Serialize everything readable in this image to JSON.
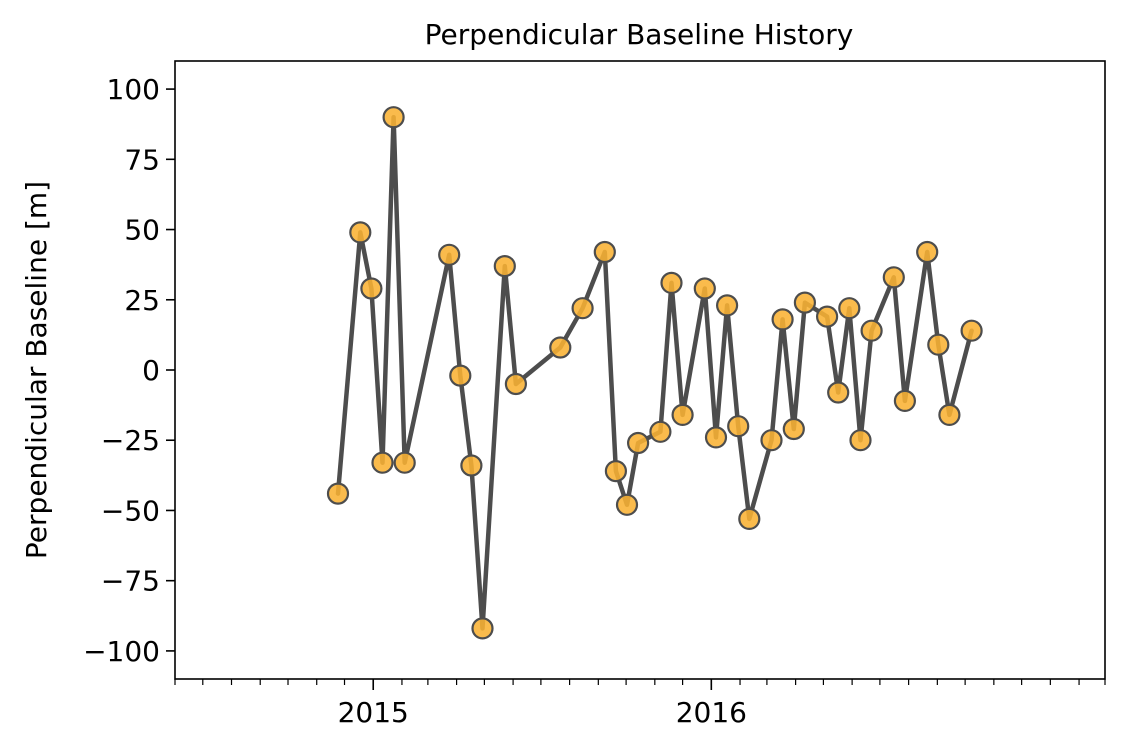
{
  "chart_data": {
    "type": "scatter",
    "title": "Perpendicular Baseline History",
    "xlabel": "",
    "ylabel": "Perpendicular Baseline [m]",
    "ylim": [
      -110,
      110
    ],
    "xlim": [
      "2014-06-01",
      "2017-03-01"
    ],
    "y_ticks": [
      -100,
      -75,
      -50,
      -25,
      0,
      25,
      50,
      75,
      100
    ],
    "y_tick_labels": [
      "−100",
      "−75",
      "−50",
      "−25",
      "0",
      "25",
      "50",
      "75",
      "100"
    ],
    "x_major_ticks": [
      {
        "date": "2015-01-01",
        "label": "2015"
      },
      {
        "date": "2016-01-01",
        "label": "2016"
      }
    ],
    "grid": false,
    "connect_points": true,
    "line_color": "#4d4d4d",
    "marker_fill": "#f9b233",
    "marker_edge": "#4d4d4d",
    "series": [
      {
        "points": [
          {
            "x": "2014-11-24",
            "y": -44
          },
          {
            "x": "2014-12-18",
            "y": 49
          },
          {
            "x": "2014-12-30",
            "y": 29
          },
          {
            "x": "2015-01-11",
            "y": -33
          },
          {
            "x": "2015-01-23",
            "y": 90
          },
          {
            "x": "2015-02-04",
            "y": -33
          },
          {
            "x": "2015-03-24",
            "y": 41
          },
          {
            "x": "2015-04-05",
            "y": -2
          },
          {
            "x": "2015-04-17",
            "y": -34
          },
          {
            "x": "2015-04-29",
            "y": -92
          },
          {
            "x": "2015-05-23",
            "y": 37
          },
          {
            "x": "2015-06-04",
            "y": -5
          },
          {
            "x": "2015-07-22",
            "y": 8
          },
          {
            "x": "2015-08-15",
            "y": 22
          },
          {
            "x": "2015-09-08",
            "y": 42
          },
          {
            "x": "2015-09-20",
            "y": -36
          },
          {
            "x": "2015-10-02",
            "y": -48
          },
          {
            "x": "2015-10-14",
            "y": -26
          },
          {
            "x": "2015-11-07",
            "y": -22
          },
          {
            "x": "2015-11-19",
            "y": 31
          },
          {
            "x": "2015-12-01",
            "y": -16
          },
          {
            "x": "2015-12-25",
            "y": 29
          },
          {
            "x": "2016-01-06",
            "y": -24
          },
          {
            "x": "2016-01-18",
            "y": 23
          },
          {
            "x": "2016-01-30",
            "y": -20
          },
          {
            "x": "2016-02-11",
            "y": -53
          },
          {
            "x": "2016-03-06",
            "y": -25
          },
          {
            "x": "2016-03-18",
            "y": 18
          },
          {
            "x": "2016-03-30",
            "y": -21
          },
          {
            "x": "2016-04-11",
            "y": 24
          },
          {
            "x": "2016-05-05",
            "y": 19
          },
          {
            "x": "2016-05-17",
            "y": -8
          },
          {
            "x": "2016-05-29",
            "y": 22
          },
          {
            "x": "2016-06-10",
            "y": -25
          },
          {
            "x": "2016-06-22",
            "y": 14
          },
          {
            "x": "2016-07-16",
            "y": 33
          },
          {
            "x": "2016-07-28",
            "y": -11
          },
          {
            "x": "2016-08-21",
            "y": 42
          },
          {
            "x": "2016-09-02",
            "y": 9
          },
          {
            "x": "2016-09-14",
            "y": -16
          },
          {
            "x": "2016-10-08",
            "y": 14
          }
        ]
      }
    ]
  }
}
